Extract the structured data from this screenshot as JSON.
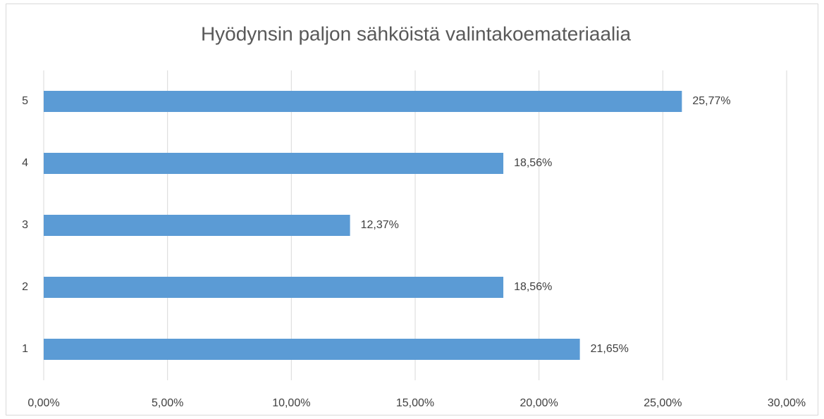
{
  "chart_data": {
    "type": "bar",
    "orientation": "horizontal",
    "title": "Hyödynsin paljon sähköistä valintakoemateriaalia",
    "categories": [
      "1",
      "2",
      "3",
      "4",
      "5"
    ],
    "values": [
      21.65,
      18.56,
      12.37,
      18.56,
      25.77
    ],
    "value_labels": [
      "21,65%",
      "18,56%",
      "12,37%",
      "18,56%",
      "25,77%"
    ],
    "color": "#5b9bd5",
    "xlim": [
      0,
      30
    ],
    "xticks": [
      {
        "value": 0,
        "label": "0,00%"
      },
      {
        "value": 5,
        "label": "5,00%"
      },
      {
        "value": 10,
        "label": "10,00%"
      },
      {
        "value": 15,
        "label": "15,00%"
      },
      {
        "value": 20,
        "label": "20,00%"
      },
      {
        "value": 25,
        "label": "25,00%"
      },
      {
        "value": 30,
        "label": "30,00%"
      }
    ],
    "grid": true
  }
}
